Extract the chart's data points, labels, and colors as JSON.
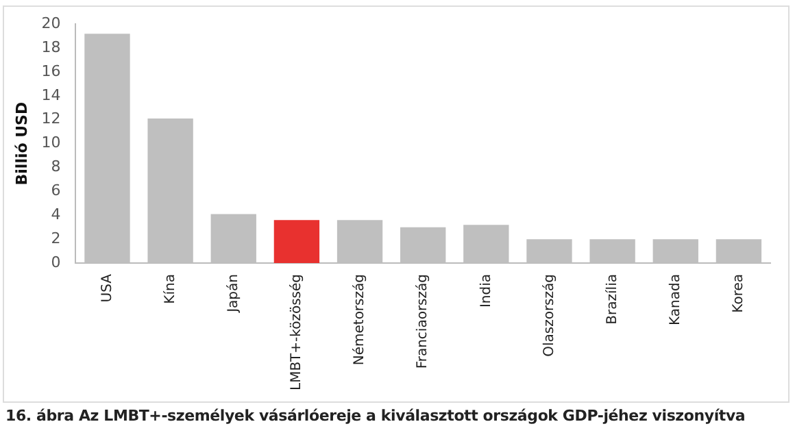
{
  "chart_data": {
    "type": "bar",
    "title": "16. ábra Az LMBT+-személyek vásárlóereje a kiválasztott országok GDP-jéhez viszonyítva",
    "ylabel": "Billió USD",
    "categories": [
      "USA",
      "Kína",
      "Japán",
      "LMBT+-közösség",
      "Németország",
      "Franciaország",
      "India",
      "Olaszország",
      "Brazília",
      "Kanada",
      "Korea"
    ],
    "values": [
      19.2,
      12.1,
      4.1,
      3.6,
      3.6,
      3.0,
      3.2,
      2.0,
      2.0,
      2.0,
      2.0
    ],
    "colors": [
      "#bfbfbf",
      "#bfbfbf",
      "#bfbfbf",
      "#e8312f",
      "#bfbfbf",
      "#bfbfbf",
      "#bfbfbf",
      "#bfbfbf",
      "#bfbfbf",
      "#bfbfbf",
      "#bfbfbf"
    ],
    "ylim": [
      0,
      20
    ],
    "yticks": [
      0,
      2,
      4,
      6,
      8,
      10,
      12,
      14,
      16,
      18,
      20
    ],
    "grid": false,
    "legend": false
  }
}
